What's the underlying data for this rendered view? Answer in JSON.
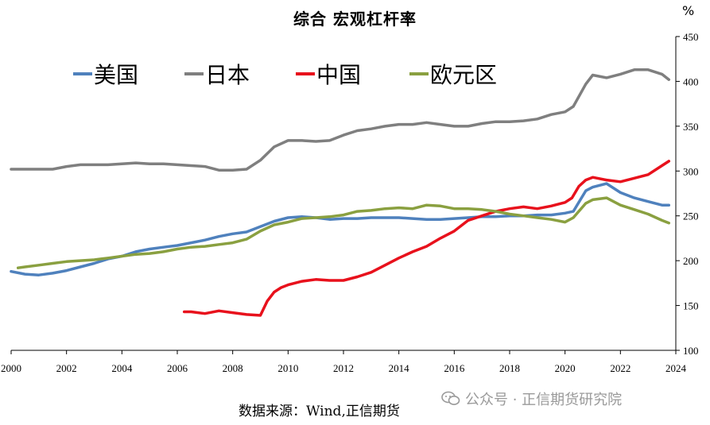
{
  "chart_data": {
    "type": "line",
    "title": "综合 宏观杠杆率",
    "unit_label": "%",
    "xlim": [
      2000,
      2024
    ],
    "ylim": [
      100,
      450
    ],
    "x_ticks": [
      "2000",
      "2002",
      "2004",
      "2006",
      "2008",
      "2010",
      "2012",
      "2014",
      "2016",
      "2018",
      "2020",
      "2022",
      "2024"
    ],
    "y_ticks": [
      "100",
      "150",
      "200",
      "250",
      "300",
      "350",
      "400",
      "450"
    ],
    "legend_position": "top-left",
    "series": [
      {
        "name": "美国",
        "color": "#4f81bd",
        "x": [
          2000,
          2000.5,
          2001,
          2001.5,
          2002,
          2002.5,
          2003,
          2003.5,
          2004,
          2004.5,
          2005,
          2005.5,
          2006,
          2006.5,
          2007,
          2007.5,
          2008,
          2008.5,
          2009,
          2009.5,
          2010,
          2010.5,
          2011,
          2011.5,
          2012,
          2012.5,
          2013,
          2013.5,
          2014,
          2014.5,
          2015,
          2015.5,
          2016,
          2016.5,
          2017,
          2017.5,
          2018,
          2018.5,
          2019,
          2019.5,
          2020,
          2020.3,
          2020.75,
          2021,
          2021.5,
          2022,
          2022.5,
          2023,
          2023.5,
          2023.75
        ],
        "y": [
          188,
          185,
          184,
          186,
          189,
          193,
          197,
          202,
          205,
          210,
          213,
          215,
          217,
          220,
          223,
          227,
          230,
          232,
          238,
          244,
          248,
          249,
          248,
          246,
          247,
          247,
          248,
          248,
          248,
          247,
          246,
          246,
          247,
          248,
          249,
          249,
          250,
          250,
          251,
          251,
          253,
          255,
          278,
          282,
          286,
          276,
          270,
          266,
          262,
          262
        ]
      },
      {
        "name": "日本",
        "color": "#7f7f7f",
        "x": [
          2000,
          2000.5,
          2001,
          2001.5,
          2002,
          2002.5,
          2003,
          2003.5,
          2004,
          2004.5,
          2005,
          2005.5,
          2006,
          2006.5,
          2007,
          2007.5,
          2008,
          2008.5,
          2009,
          2009.5,
          2010,
          2010.5,
          2011,
          2011.5,
          2012,
          2012.5,
          2013,
          2013.5,
          2014,
          2014.5,
          2015,
          2015.5,
          2016,
          2016.5,
          2017,
          2017.5,
          2018,
          2018.5,
          2019,
          2019.5,
          2020,
          2020.3,
          2020.75,
          2021,
          2021.5,
          2022,
          2022.5,
          2023,
          2023.5,
          2023.75
        ],
        "y": [
          302,
          302,
          302,
          302,
          305,
          307,
          307,
          307,
          308,
          309,
          308,
          308,
          307,
          306,
          305,
          301,
          301,
          302,
          312,
          327,
          334,
          334,
          333,
          334,
          340,
          345,
          347,
          350,
          352,
          352,
          354,
          352,
          350,
          350,
          353,
          355,
          355,
          356,
          358,
          363,
          366,
          372,
          397,
          407,
          404,
          408,
          413,
          413,
          408,
          402
        ]
      },
      {
        "name": "中国",
        "color": "#e8111c",
        "x": [
          2006.25,
          2006.5,
          2007,
          2007.5,
          2008,
          2008.5,
          2009,
          2009.25,
          2009.5,
          2009.75,
          2010,
          2010.5,
          2011,
          2011.5,
          2012,
          2012.5,
          2013,
          2013.5,
          2014,
          2014.5,
          2015,
          2015.5,
          2016,
          2016.5,
          2017,
          2017.5,
          2018,
          2018.5,
          2019,
          2019.5,
          2020,
          2020.25,
          2020.5,
          2020.75,
          2021,
          2021.5,
          2022,
          2022.5,
          2023,
          2023.5,
          2023.75
        ],
        "y": [
          143,
          143,
          141,
          144,
          142,
          140,
          139,
          155,
          165,
          170,
          173,
          177,
          179,
          178,
          178,
          182,
          187,
          195,
          203,
          210,
          216,
          225,
          233,
          245,
          250,
          255,
          258,
          260,
          258,
          261,
          265,
          270,
          283,
          290,
          293,
          290,
          288,
          292,
          296,
          306,
          311
        ]
      },
      {
        "name": "欧元区",
        "color": "#8aa040",
        "x": [
          2000.25,
          2000.5,
          2001,
          2001.5,
          2002,
          2002.5,
          2003,
          2003.5,
          2004,
          2004.5,
          2005,
          2005.5,
          2006,
          2006.5,
          2007,
          2007.5,
          2008,
          2008.5,
          2009,
          2009.5,
          2010,
          2010.5,
          2011,
          2011.5,
          2012,
          2012.5,
          2013,
          2013.5,
          2014,
          2014.5,
          2015,
          2015.5,
          2016,
          2016.5,
          2017,
          2017.5,
          2018,
          2018.5,
          2019,
          2019.5,
          2020,
          2020.3,
          2020.75,
          2021,
          2021.5,
          2022,
          2022.5,
          2023,
          2023.5,
          2023.75
        ],
        "y": [
          192,
          193,
          195,
          197,
          199,
          200,
          201,
          203,
          205,
          207,
          208,
          210,
          213,
          215,
          216,
          218,
          220,
          224,
          233,
          240,
          243,
          247,
          248,
          249,
          251,
          255,
          256,
          258,
          259,
          258,
          262,
          261,
          258,
          258,
          257,
          255,
          252,
          250,
          248,
          246,
          243,
          248,
          264,
          268,
          270,
          262,
          257,
          252,
          245,
          242
        ]
      }
    ]
  },
  "source_text": "数据来源：Wind,正信期货",
  "watermark_text": "公众号 · 正信期货研究院"
}
